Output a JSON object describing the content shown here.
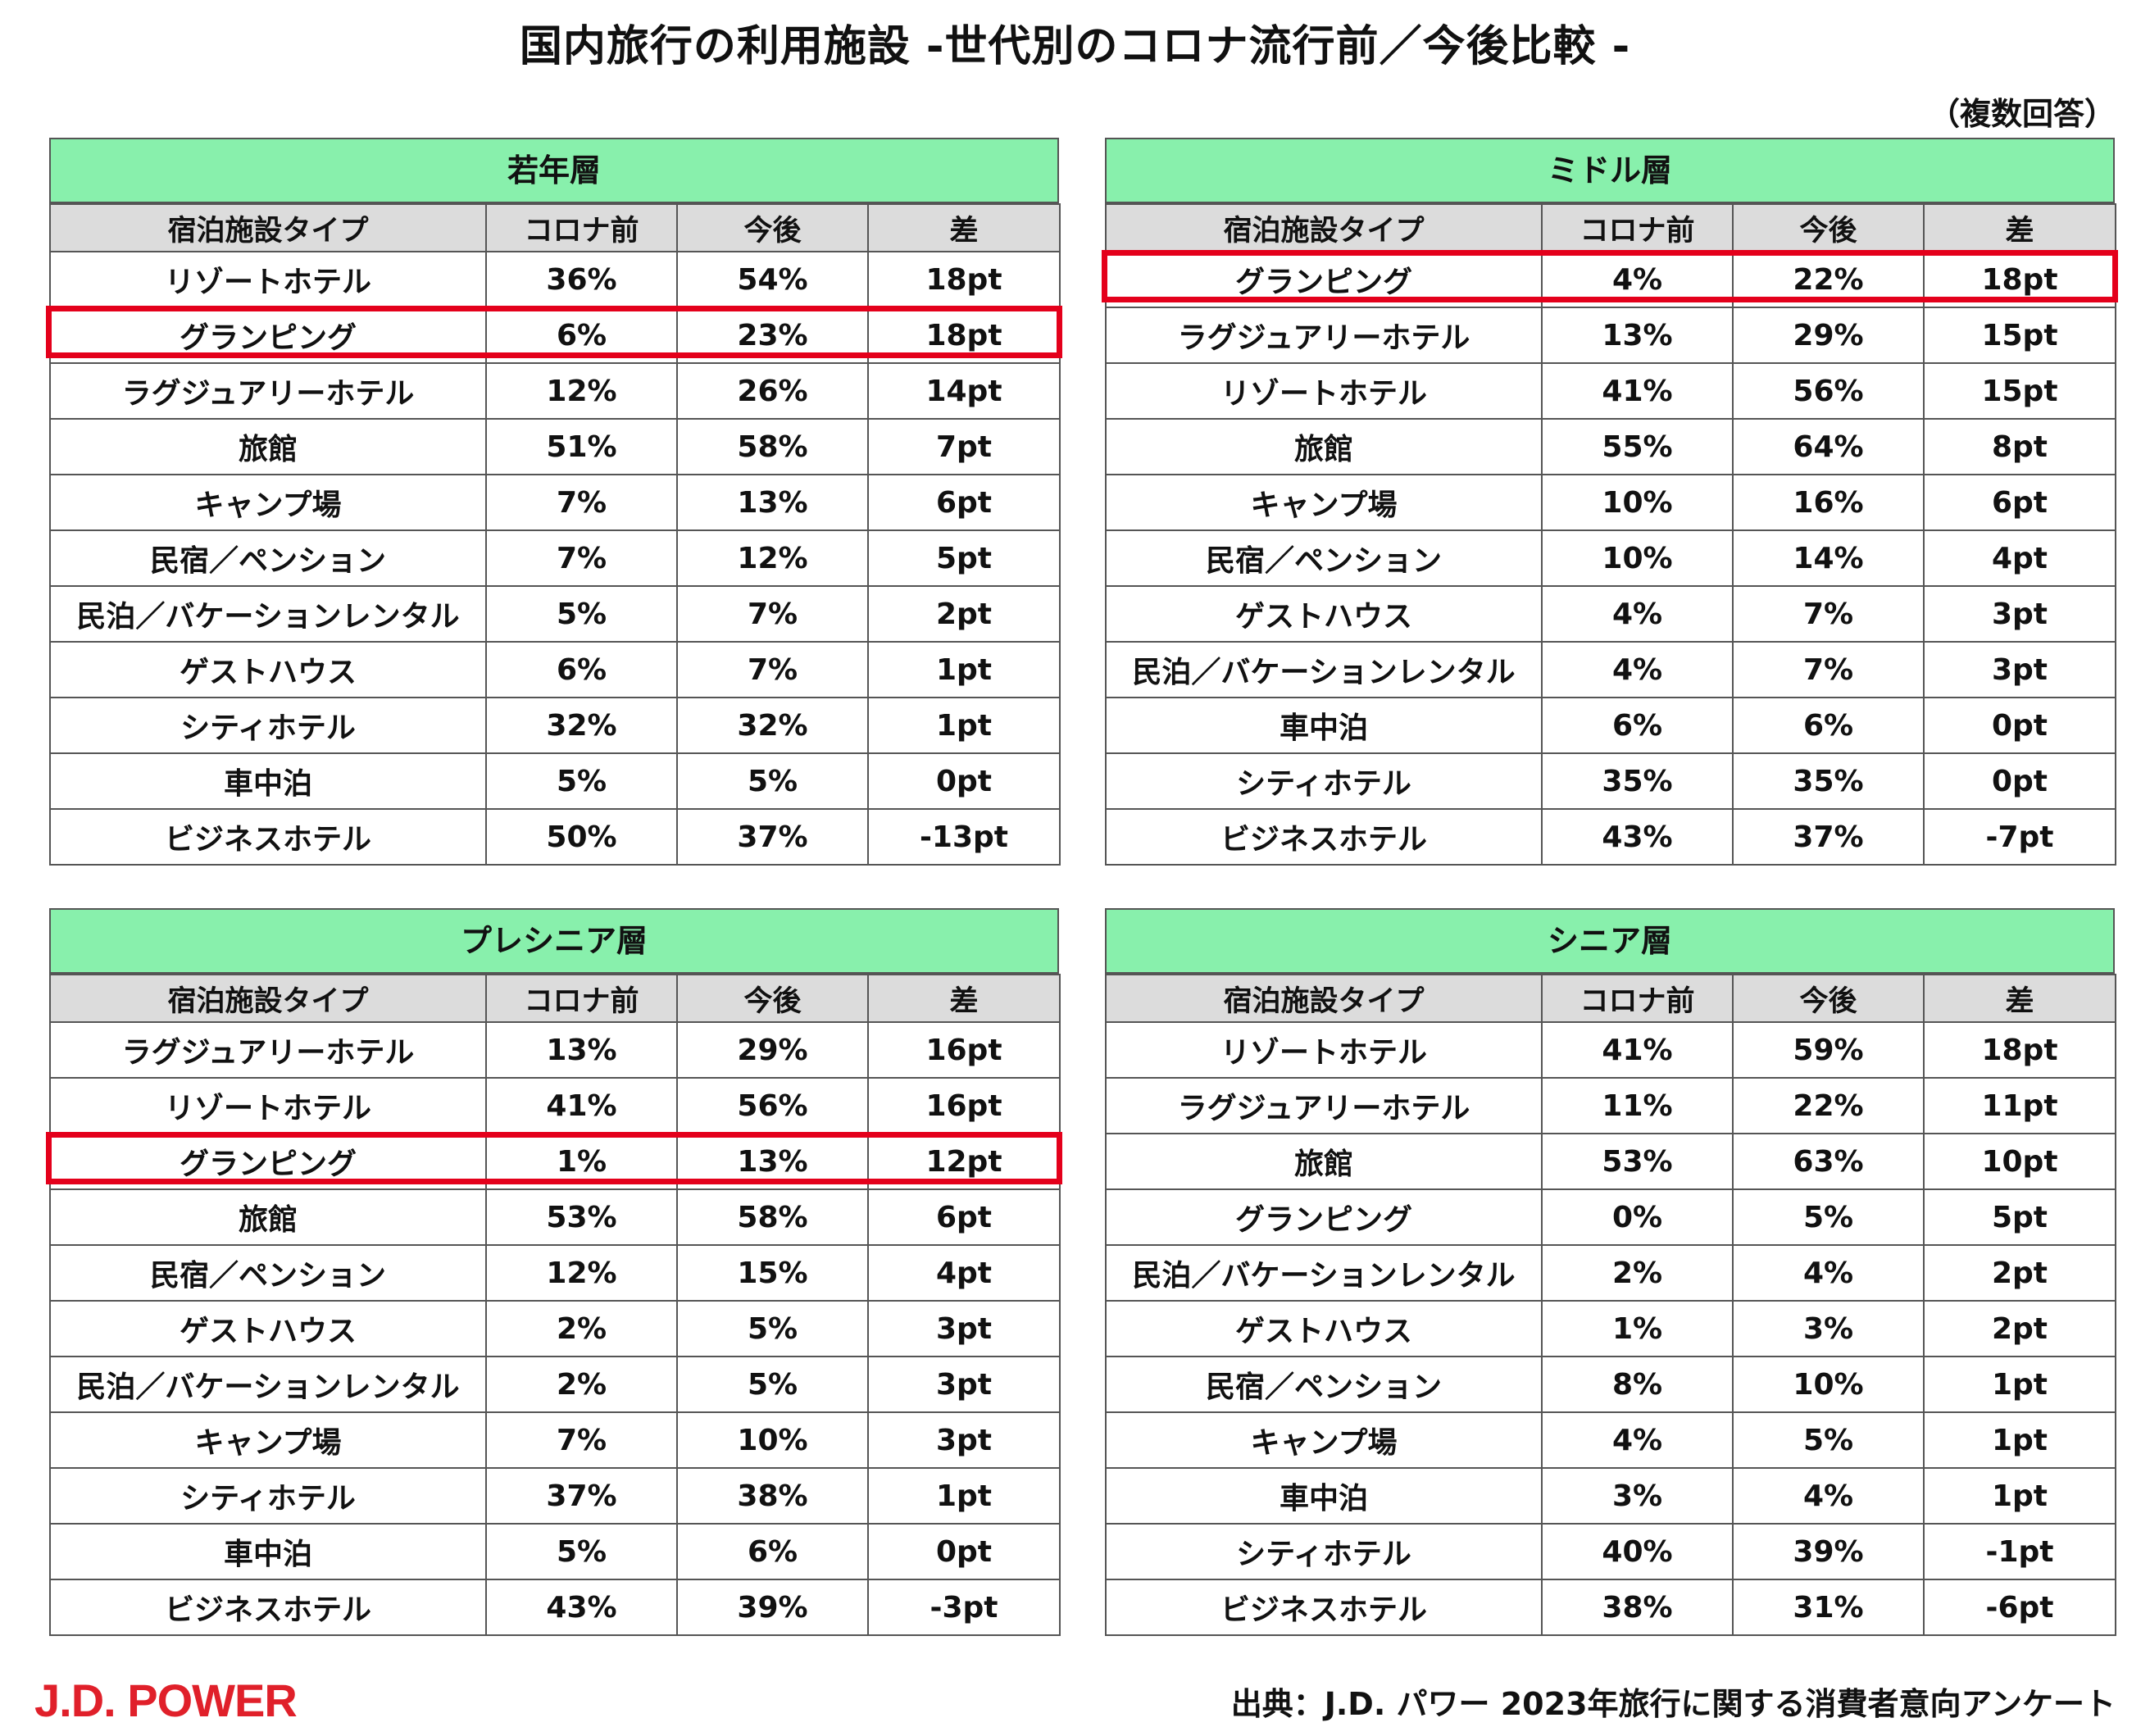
{
  "title": "国内旅行の利用施設 -世代別のコロナ流行前／今後比較 -",
  "note": "（複数回答）",
  "columns": [
    "宿泊施設タイプ",
    "コロナ前",
    "今後",
    "差"
  ],
  "highlight_color": "#e4001b",
  "header_color": "#88f0ac",
  "panels": [
    {
      "name": "若年層",
      "highlight_row": 1,
      "rows": [
        [
          "リゾートホテル",
          "36%",
          "54%",
          "18pt"
        ],
        [
          "グランピング",
          "6%",
          "23%",
          "18pt"
        ],
        [
          "ラグジュアリーホテル",
          "12%",
          "26%",
          "14pt"
        ],
        [
          "旅館",
          "51%",
          "58%",
          "7pt"
        ],
        [
          "キャンプ場",
          "7%",
          "13%",
          "6pt"
        ],
        [
          "民宿／ペンション",
          "7%",
          "12%",
          "5pt"
        ],
        [
          "民泊／バケーションレンタル",
          "5%",
          "7%",
          "2pt"
        ],
        [
          "ゲストハウス",
          "6%",
          "7%",
          "1pt"
        ],
        [
          "シティホテル",
          "32%",
          "32%",
          "1pt"
        ],
        [
          "車中泊",
          "5%",
          "5%",
          "0pt"
        ],
        [
          "ビジネスホテル",
          "50%",
          "37%",
          "-13pt"
        ]
      ]
    },
    {
      "name": "ミドル層",
      "highlight_row": 0,
      "rows": [
        [
          "グランピング",
          "4%",
          "22%",
          "18pt"
        ],
        [
          "ラグジュアリーホテル",
          "13%",
          "29%",
          "15pt"
        ],
        [
          "リゾートホテル",
          "41%",
          "56%",
          "15pt"
        ],
        [
          "旅館",
          "55%",
          "64%",
          "8pt"
        ],
        [
          "キャンプ場",
          "10%",
          "16%",
          "6pt"
        ],
        [
          "民宿／ペンション",
          "10%",
          "14%",
          "4pt"
        ],
        [
          "ゲストハウス",
          "4%",
          "7%",
          "3pt"
        ],
        [
          "民泊／バケーションレンタル",
          "4%",
          "7%",
          "3pt"
        ],
        [
          "車中泊",
          "6%",
          "6%",
          "0pt"
        ],
        [
          "シティホテル",
          "35%",
          "35%",
          "0pt"
        ],
        [
          "ビジネスホテル",
          "43%",
          "37%",
          "-7pt"
        ]
      ]
    },
    {
      "name": "プレシニア層",
      "highlight_row": 2,
      "rows": [
        [
          "ラグジュアリーホテル",
          "13%",
          "29%",
          "16pt"
        ],
        [
          "リゾートホテル",
          "41%",
          "56%",
          "16pt"
        ],
        [
          "グランピング",
          "1%",
          "13%",
          "12pt"
        ],
        [
          "旅館",
          "53%",
          "58%",
          "6pt"
        ],
        [
          "民宿／ペンション",
          "12%",
          "15%",
          "4pt"
        ],
        [
          "ゲストハウス",
          "2%",
          "5%",
          "3pt"
        ],
        [
          "民泊／バケーションレンタル",
          "2%",
          "5%",
          "3pt"
        ],
        [
          "キャンプ場",
          "7%",
          "10%",
          "3pt"
        ],
        [
          "シティホテル",
          "37%",
          "38%",
          "1pt"
        ],
        [
          "車中泊",
          "5%",
          "6%",
          "0pt"
        ],
        [
          "ビジネスホテル",
          "43%",
          "39%",
          "-3pt"
        ]
      ]
    },
    {
      "name": "シニア層",
      "highlight_row": null,
      "rows": [
        [
          "リゾートホテル",
          "41%",
          "59%",
          "18pt"
        ],
        [
          "ラグジュアリーホテル",
          "11%",
          "22%",
          "11pt"
        ],
        [
          "旅館",
          "53%",
          "63%",
          "10pt"
        ],
        [
          "グランピング",
          "0%",
          "5%",
          "5pt"
        ],
        [
          "民泊／バケーションレンタル",
          "2%",
          "4%",
          "2pt"
        ],
        [
          "ゲストハウス",
          "1%",
          "3%",
          "2pt"
        ],
        [
          "民宿／ペンション",
          "8%",
          "10%",
          "1pt"
        ],
        [
          "キャンプ場",
          "4%",
          "5%",
          "1pt"
        ],
        [
          "車中泊",
          "3%",
          "4%",
          "1pt"
        ],
        [
          "シティホテル",
          "40%",
          "39%",
          "-1pt"
        ],
        [
          "ビジネスホテル",
          "38%",
          "31%",
          "-6pt"
        ]
      ]
    }
  ],
  "logo": "J.D. POWER",
  "source": "出典：J.D. パワー 2023年旅行に関する消費者意向アンケート"
}
